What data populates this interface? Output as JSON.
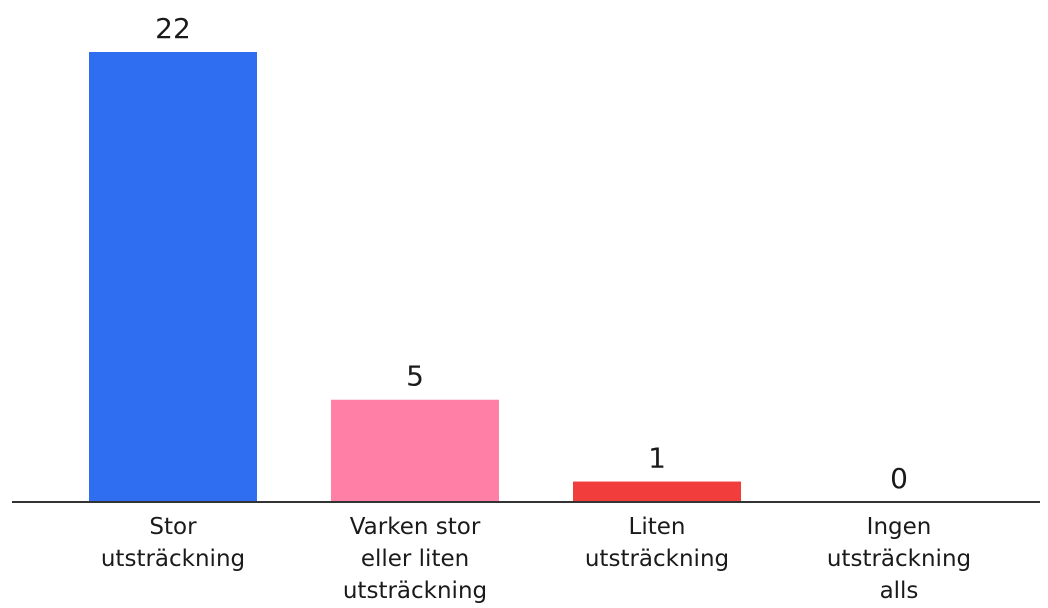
{
  "chart_data": {
    "type": "bar",
    "title": "",
    "xlabel": "",
    "ylabel": "",
    "categories": [
      [
        "Stor",
        "utsträckning"
      ],
      [
        "Varken stor",
        "eller liten",
        "utsträckning"
      ],
      [
        "Liten",
        "utsträckning"
      ],
      [
        "Ingen",
        "utsträckning",
        "alls"
      ]
    ],
    "values": [
      22,
      5,
      1,
      0
    ],
    "data_labels": [
      "22",
      "5",
      "1",
      "0"
    ],
    "colors": [
      "#2f6ef0",
      "#ff7fa7",
      "#f23d3d",
      "#ff7fa7"
    ],
    "baseline_color": "#333333",
    "ylim": [
      0,
      22
    ],
    "grid": false,
    "legend": "none"
  }
}
